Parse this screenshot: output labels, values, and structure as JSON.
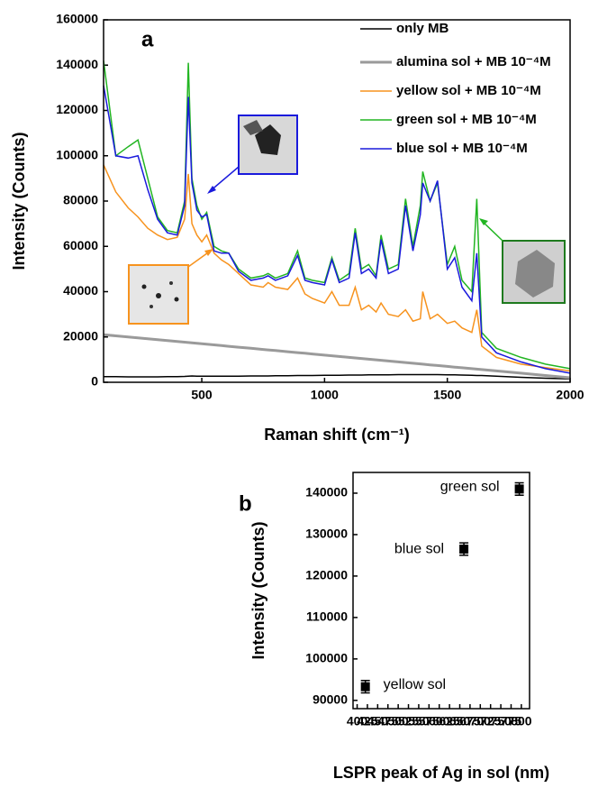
{
  "chart_data": [
    {
      "type": "line",
      "title": "a",
      "x_label": "Raman shift (cm⁻¹)",
      "y_label": "Intensity (Counts)",
      "x": [
        100,
        150,
        200,
        240,
        280,
        320,
        360,
        400,
        430,
        445,
        460,
        480,
        500,
        520,
        550,
        580,
        610,
        650,
        700,
        750,
        770,
        800,
        850,
        890,
        920,
        950,
        1000,
        1030,
        1060,
        1100,
        1125,
        1150,
        1180,
        1210,
        1230,
        1260,
        1300,
        1330,
        1360,
        1390,
        1400,
        1430,
        1460,
        1500,
        1530,
        1560,
        1600,
        1620,
        1640,
        1700,
        1800,
        1900,
        2000
      ],
      "xlim": [
        100,
        2000
      ],
      "xticks": [
        500,
        1000,
        1500,
        2000
      ],
      "ylim": [
        0,
        160000
      ],
      "yticks": [
        0,
        20000,
        40000,
        60000,
        80000,
        100000,
        120000,
        140000,
        160000
      ],
      "legend": "upper right",
      "series": [
        {
          "name": "only MB",
          "color": "#000000",
          "values": [
            2500,
            2500,
            2400,
            2400,
            2400,
            2400,
            2500,
            2500,
            2600,
            2700,
            2800,
            2700,
            2700,
            2700,
            2700,
            2700,
            2700,
            2700,
            2800,
            2800,
            2800,
            2900,
            2900,
            3000,
            3000,
            3000,
            3100,
            3100,
            3100,
            3200,
            3200,
            3200,
            3300,
            3300,
            3300,
            3300,
            3400,
            3400,
            3400,
            3400,
            3400,
            3400,
            3400,
            3300,
            3300,
            3200,
            3100,
            3000,
            3000,
            2700,
            2200,
            1800,
            1500
          ]
        },
        {
          "name": "alumina sol + MB 10⁻⁴M",
          "color": "#9a9a9a",
          "values": [
            21000,
            20500,
            20000,
            19600,
            19200,
            18800,
            18400,
            18000,
            17700,
            17550,
            17400,
            17200,
            17000,
            16800,
            16500,
            16200,
            15900,
            15500,
            15000,
            14500,
            14300,
            14000,
            13500,
            13100,
            12800,
            12500,
            12000,
            11700,
            11400,
            11000,
            10750,
            10500,
            10200,
            9900,
            9700,
            9400,
            9000,
            8700,
            8400,
            8100,
            8000,
            7700,
            7400,
            7000,
            6700,
            6400,
            6000,
            5800,
            5600,
            5000,
            4000,
            3000,
            2000
          ]
        },
        {
          "name": "yellow sol + MB 10⁻⁴M",
          "color": "#f7931e",
          "values": [
            96000,
            84000,
            77000,
            73000,
            68000,
            65000,
            63000,
            64000,
            72000,
            92000,
            70000,
            65000,
            62000,
            65000,
            57000,
            54000,
            52000,
            48000,
            43000,
            42000,
            44000,
            42000,
            41000,
            46000,
            39000,
            37000,
            35000,
            40000,
            34000,
            34000,
            42000,
            32000,
            34000,
            31000,
            35000,
            30000,
            29000,
            32000,
            27000,
            28000,
            40000,
            28000,
            30000,
            26000,
            27000,
            24000,
            22000,
            32000,
            16000,
            11000,
            8000,
            6500,
            5000
          ]
        },
        {
          "name": "green sol + MB 10⁻⁴M",
          "color": "#22b522",
          "values": [
            142000,
            100000,
            104000,
            107000,
            90000,
            73000,
            67000,
            66000,
            80000,
            141000,
            90000,
            78000,
            72000,
            75000,
            60000,
            58000,
            57000,
            50000,
            46000,
            47000,
            48000,
            46000,
            48000,
            58000,
            46000,
            45000,
            44000,
            55000,
            45000,
            48000,
            68000,
            50000,
            52000,
            47000,
            65000,
            50000,
            52000,
            81000,
            60000,
            78000,
            93000,
            80000,
            88000,
            52000,
            60000,
            45000,
            40000,
            81000,
            22000,
            15000,
            11000,
            8000,
            6000
          ]
        },
        {
          "name": "blue sol + MB 10⁻⁴M",
          "color": "#1a1adc",
          "values": [
            131000,
            100000,
            99000,
            100000,
            85000,
            72000,
            66000,
            65000,
            78000,
            126000,
            88000,
            76000,
            73000,
            74000,
            58000,
            57000,
            57000,
            49000,
            45000,
            46000,
            47000,
            45000,
            47000,
            56000,
            45000,
            44000,
            43000,
            54000,
            44000,
            46000,
            66000,
            48000,
            50000,
            46000,
            63000,
            48000,
            50000,
            78000,
            58000,
            74000,
            88000,
            80000,
            89000,
            50000,
            55000,
            42000,
            36000,
            57000,
            20000,
            13000,
            9000,
            6000,
            4000
          ]
        }
      ]
    },
    {
      "type": "scatter",
      "title": "b",
      "x_label": "LSPR peak of Ag in sol (nm)",
      "y_label": "Intensity (Counts)",
      "x": [
        420,
        660,
        795
      ],
      "xlim": [
        390,
        820
      ],
      "xticks": [
        400,
        425,
        450,
        475,
        500,
        525,
        550,
        575,
        600,
        625,
        650,
        675,
        700,
        725,
        750,
        775,
        800
      ],
      "ylim": [
        88000,
        145000
      ],
      "yticks": [
        90000,
        100000,
        110000,
        120000,
        130000,
        140000
      ],
      "series": [
        {
          "color": "#000000",
          "values": [
            93300,
            126500,
            141000
          ],
          "errors": [
            1500,
            1500,
            1500
          ]
        }
      ],
      "point_labels": [
        "yellow sol",
        "blue sol",
        "green sol"
      ]
    }
  ]
}
